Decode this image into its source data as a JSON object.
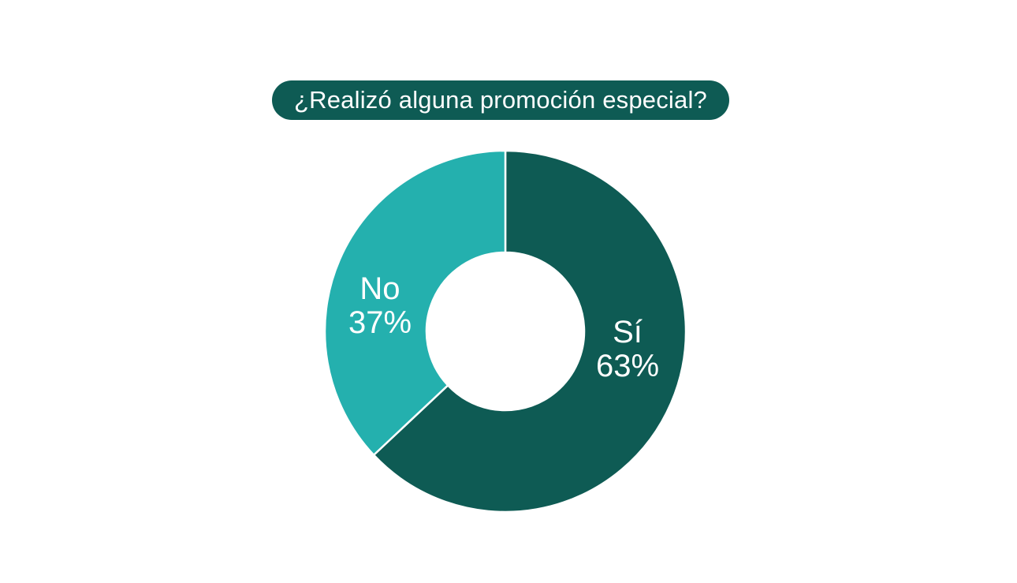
{
  "title": "¿Realizó alguna promoción especial?",
  "colors": {
    "background": "#ffffff",
    "title_bg": "#0e5b54",
    "title_text": "#ffffff",
    "label_text": "#ffffff",
    "slice_gap": "#ffffff",
    "dark_teal": "#0e5b54",
    "turquoise": "#24b0ae"
  },
  "chart_data": {
    "type": "pie",
    "style": "donut",
    "title": "¿Realizó alguna promoción especial?",
    "start_angle_deg": 0,
    "direction": "clockwise",
    "legend": "none",
    "labels_inside": true,
    "slices": [
      {
        "label": "Sí",
        "value": 63,
        "pct_label": "63%",
        "color": "#0e5b54"
      },
      {
        "label": "No",
        "value": 37,
        "pct_label": "37%",
        "color": "#24b0ae"
      }
    ]
  }
}
